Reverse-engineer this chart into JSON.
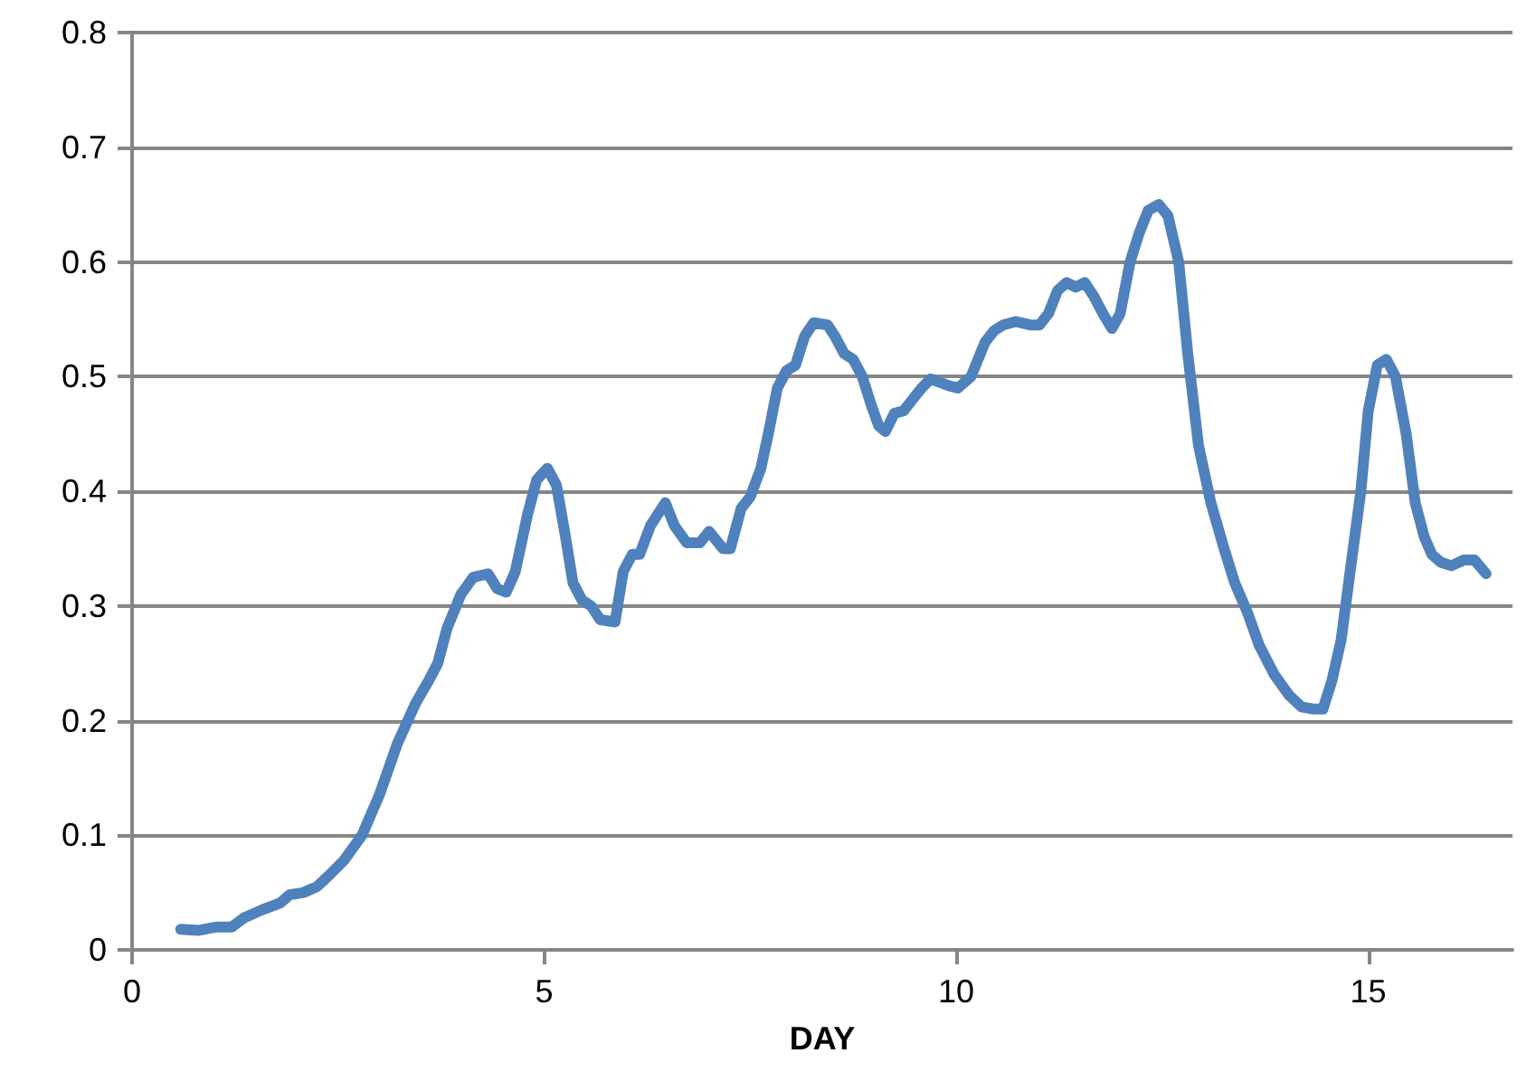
{
  "chart_data": {
    "type": "line",
    "xlabel": "DAY",
    "xlim": [
      0,
      16.75
    ],
    "xticks": [
      0,
      5,
      10,
      15
    ],
    "ylim": [
      0,
      0.8
    ],
    "yticks": [
      0,
      0.1,
      0.2,
      0.3,
      0.4,
      0.5,
      0.6,
      0.7,
      0.8
    ],
    "grid": "y",
    "marker": "none",
    "line_style": "solid",
    "series": [
      {
        "color": "#4f81bd",
        "x": [
          0.59,
          0.81,
          1.03,
          1.21,
          1.36,
          1.58,
          1.8,
          1.91,
          2.08,
          2.24,
          2.39,
          2.57,
          2.79,
          3.0,
          3.22,
          3.44,
          3.6,
          3.71,
          3.82,
          3.99,
          4.14,
          4.32,
          4.43,
          4.54,
          4.65,
          4.8,
          4.91,
          5.04,
          5.15,
          5.26,
          5.35,
          5.46,
          5.57,
          5.68,
          5.86,
          5.96,
          6.07,
          6.16,
          6.29,
          6.47,
          6.58,
          6.73,
          6.89,
          7.0,
          7.17,
          7.26,
          7.39,
          7.5,
          7.63,
          7.72,
          7.83,
          7.94,
          8.05,
          8.16,
          8.27,
          8.44,
          8.53,
          8.64,
          8.75,
          8.86,
          8.97,
          9.06,
          9.14,
          9.25,
          9.36,
          9.47,
          9.58,
          9.69,
          9.8,
          9.91,
          10.02,
          10.18,
          10.35,
          10.46,
          10.57,
          10.72,
          10.9,
          11.01,
          11.12,
          11.23,
          11.34,
          11.45,
          11.56,
          11.67,
          11.78,
          11.89,
          11.99,
          12.11,
          12.22,
          12.33,
          12.46,
          12.57,
          12.7,
          12.81,
          12.94,
          13.09,
          13.25,
          13.38,
          13.53,
          13.68,
          13.86,
          14.04,
          14.19,
          14.34,
          14.45,
          14.56,
          14.67,
          14.78,
          14.91,
          15.0,
          15.11,
          15.22,
          15.33,
          15.46,
          15.57,
          15.68,
          15.77,
          15.88,
          16.01,
          16.16,
          16.29,
          16.43
        ],
        "values": [
          0.018,
          0.017,
          0.02,
          0.02,
          0.028,
          0.035,
          0.041,
          0.048,
          0.05,
          0.055,
          0.065,
          0.078,
          0.1,
          0.135,
          0.18,
          0.215,
          0.235,
          0.25,
          0.28,
          0.31,
          0.325,
          0.328,
          0.315,
          0.312,
          0.33,
          0.38,
          0.41,
          0.42,
          0.405,
          0.36,
          0.32,
          0.305,
          0.3,
          0.288,
          0.286,
          0.33,
          0.345,
          0.345,
          0.37,
          0.39,
          0.37,
          0.355,
          0.355,
          0.365,
          0.35,
          0.35,
          0.385,
          0.395,
          0.42,
          0.45,
          0.49,
          0.505,
          0.51,
          0.535,
          0.547,
          0.545,
          0.535,
          0.52,
          0.515,
          0.5,
          0.475,
          0.457,
          0.452,
          0.468,
          0.47,
          0.48,
          0.49,
          0.498,
          0.495,
          0.492,
          0.49,
          0.5,
          0.53,
          0.54,
          0.545,
          0.548,
          0.545,
          0.545,
          0.555,
          0.575,
          0.582,
          0.578,
          0.582,
          0.57,
          0.555,
          0.542,
          0.555,
          0.6,
          0.625,
          0.645,
          0.65,
          0.64,
          0.6,
          0.52,
          0.44,
          0.39,
          0.35,
          0.32,
          0.295,
          0.265,
          0.24,
          0.222,
          0.212,
          0.21,
          0.21,
          0.235,
          0.27,
          0.33,
          0.4,
          0.47,
          0.51,
          0.515,
          0.5,
          0.45,
          0.39,
          0.36,
          0.345,
          0.338,
          0.335,
          0.34,
          0.34,
          0.328
        ]
      }
    ]
  }
}
